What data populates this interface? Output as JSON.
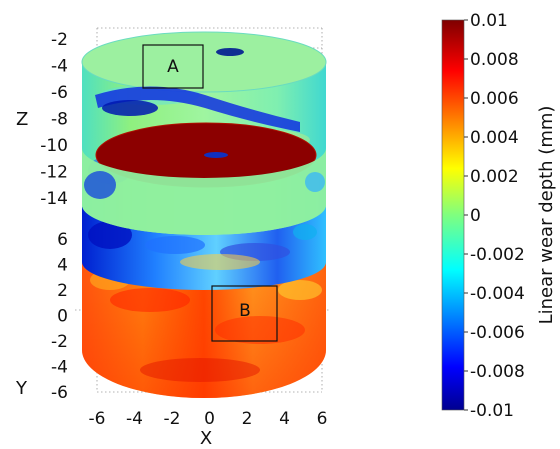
{
  "chart_data": {
    "type": "heatmap",
    "variant": "3d-cylindrical-surface",
    "x_label": "X",
    "y_label": "Y",
    "z_label": "Z",
    "x_ticks": [
      "-6",
      "-4",
      "-2",
      "0",
      "2",
      "4",
      "6"
    ],
    "z_ticks": [
      "-2",
      "-4",
      "-6",
      "-8",
      "-10",
      "-12",
      "-14"
    ],
    "y_ticks": [
      "6",
      "4",
      "2",
      "0",
      "-2",
      "-4",
      "-6"
    ],
    "colorbar": {
      "label": "Linear wear depth (mm)",
      "min": -0.01,
      "max": 0.01,
      "ticks": [
        "0.01",
        "0.008",
        "0.006",
        "0.004",
        "0.002",
        "0",
        "-0.002",
        "-0.004",
        "-0.006",
        "-0.008",
        "-0.01"
      ],
      "colormap": "jet"
    },
    "regions": [
      {
        "label": "A"
      },
      {
        "label": "B"
      }
    ],
    "grid": true
  }
}
